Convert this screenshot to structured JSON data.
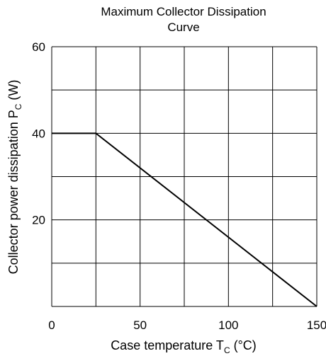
{
  "chart_data": {
    "type": "line",
    "title_line1": "Maximum Collector Dissipation",
    "title_line2": "Curve",
    "xlabel_main": "Case temperature  T",
    "xlabel_sub": "C",
    "xlabel_unit": "  (°C)",
    "ylabel_main": "Collector power dissipation  P",
    "ylabel_sub": "C",
    "ylabel_unit": "  (W)",
    "xlim": [
      0,
      150
    ],
    "ylim": [
      0,
      60
    ],
    "x_gridlines": [
      0,
      25,
      50,
      75,
      100,
      125,
      150
    ],
    "y_gridlines": [
      0,
      10,
      20,
      30,
      40,
      50,
      60
    ],
    "x_tick_labels": [
      {
        "value": 0,
        "label": "0"
      },
      {
        "value": 50,
        "label": "50"
      },
      {
        "value": 100,
        "label": "100"
      },
      {
        "value": 150,
        "label": "150"
      }
    ],
    "y_tick_labels": [
      {
        "value": 20,
        "label": "20"
      },
      {
        "value": 40,
        "label": "40"
      },
      {
        "value": 60,
        "label": "60"
      }
    ],
    "grid": true,
    "series": [
      {
        "x": [
          0,
          25,
          150
        ],
        "y": [
          40,
          40,
          0
        ]
      }
    ]
  }
}
